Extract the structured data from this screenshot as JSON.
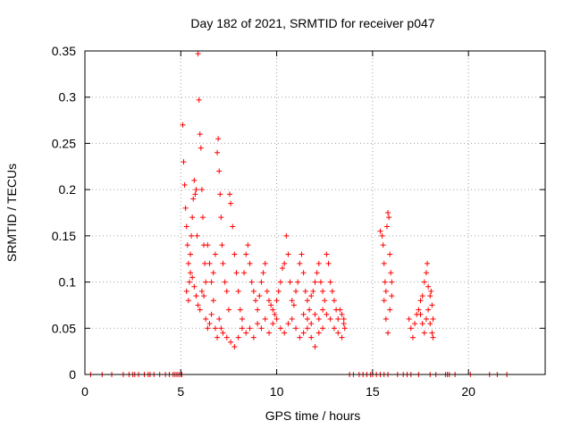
{
  "chart_data": {
    "type": "scatter",
    "title": "Day 182 of 2021, SRMTID for receiver p047",
    "xlabel": "GPS time / hours",
    "ylabel": "SRMTID / TECUs",
    "xlim": [
      0,
      24
    ],
    "ylim": [
      0,
      0.35
    ],
    "x_ticks": [
      0,
      5,
      10,
      15,
      20
    ],
    "x_tick_labels": [
      "0",
      "5",
      "10",
      "15",
      "20"
    ],
    "y_ticks": [
      0,
      0.05,
      0.1,
      0.15,
      0.2,
      0.25,
      0.3,
      0.35
    ],
    "y_tick_labels": [
      "0",
      "0.05",
      "0.1",
      "0.15",
      "0.2",
      "0.25",
      "0.3",
      "0.35"
    ],
    "grid": true,
    "marker": "+",
    "color": "#ff0000",
    "series": [
      {
        "name": "SRMTID",
        "points": [
          [
            0.3,
            0
          ],
          [
            0.9,
            0
          ],
          [
            1.4,
            0
          ],
          [
            2.0,
            0
          ],
          [
            2.3,
            0
          ],
          [
            2.5,
            0
          ],
          [
            2.6,
            0
          ],
          [
            2.8,
            0
          ],
          [
            3.1,
            0
          ],
          [
            3.3,
            0
          ],
          [
            3.4,
            0
          ],
          [
            3.6,
            0
          ],
          [
            3.9,
            0
          ],
          [
            4.2,
            0
          ],
          [
            4.4,
            0
          ],
          [
            4.6,
            0
          ],
          [
            4.7,
            0
          ],
          [
            4.8,
            0
          ],
          [
            4.9,
            0
          ],
          [
            5.0,
            0
          ],
          [
            5.05,
            0
          ],
          [
            13.8,
            0
          ],
          [
            14.0,
            0
          ],
          [
            14.3,
            0
          ],
          [
            14.5,
            0
          ],
          [
            14.7,
            0
          ],
          [
            14.9,
            0
          ],
          [
            15.0,
            0
          ],
          [
            15.2,
            0
          ],
          [
            15.4,
            0
          ],
          [
            15.6,
            0
          ],
          [
            15.8,
            0
          ],
          [
            16.3,
            0
          ],
          [
            16.6,
            0
          ],
          [
            16.8,
            0
          ],
          [
            17.0,
            0
          ],
          [
            17.4,
            0
          ],
          [
            18.0,
            0
          ],
          [
            18.3,
            0
          ],
          [
            18.8,
            0
          ],
          [
            18.9,
            0
          ],
          [
            19.0,
            0
          ],
          [
            19.3,
            0
          ],
          [
            20.1,
            0
          ],
          [
            21.1,
            0
          ],
          [
            21.5,
            0
          ],
          [
            22.0,
            0
          ],
          [
            5.1,
            0.27
          ],
          [
            5.15,
            0.23
          ],
          [
            5.2,
            0.205
          ],
          [
            5.25,
            0.18
          ],
          [
            5.3,
            0.16
          ],
          [
            5.35,
            0.14
          ],
          [
            5.4,
            0.12
          ],
          [
            5.45,
            0.1
          ],
          [
            5.5,
            0.13
          ],
          [
            5.55,
            0.15
          ],
          [
            5.6,
            0.17
          ],
          [
            5.65,
            0.19
          ],
          [
            5.7,
            0.21
          ],
          [
            5.75,
            0.195
          ],
          [
            5.8,
            0.2
          ],
          [
            5.85,
            0.15
          ],
          [
            5.9,
            0.347
          ],
          [
            5.95,
            0.297
          ],
          [
            6.0,
            0.26
          ],
          [
            6.05,
            0.245
          ],
          [
            6.1,
            0.2
          ],
          [
            6.15,
            0.17
          ],
          [
            6.2,
            0.14
          ],
          [
            6.25,
            0.12
          ],
          [
            6.3,
            0.1
          ],
          [
            5.3,
            0.09
          ],
          [
            5.4,
            0.08
          ],
          [
            5.5,
            0.11
          ],
          [
            5.6,
            0.105
          ],
          [
            5.7,
            0.095
          ],
          [
            5.8,
            0.085
          ],
          [
            5.9,
            0.075
          ],
          [
            6.0,
            0.07
          ],
          [
            6.1,
            0.09
          ],
          [
            6.2,
            0.085
          ],
          [
            6.3,
            0.06
          ],
          [
            6.4,
            0.05
          ],
          [
            6.5,
            0.055
          ],
          [
            6.6,
            0.065
          ],
          [
            6.7,
            0.08
          ],
          [
            6.4,
            0.14
          ],
          [
            6.5,
            0.12
          ],
          [
            6.6,
            0.1
          ],
          [
            6.7,
            0.11
          ],
          [
            6.8,
            0.13
          ],
          [
            6.9,
            0.24
          ],
          [
            6.95,
            0.255
          ],
          [
            7.0,
            0.22
          ],
          [
            7.05,
            0.195
          ],
          [
            7.1,
            0.17
          ],
          [
            7.15,
            0.14
          ],
          [
            7.2,
            0.12
          ],
          [
            7.3,
            0.1
          ],
          [
            7.4,
            0.09
          ],
          [
            7.5,
            0.07
          ],
          [
            7.55,
            0.195
          ],
          [
            7.6,
            0.185
          ],
          [
            7.7,
            0.16
          ],
          [
            7.8,
            0.13
          ],
          [
            7.9,
            0.11
          ],
          [
            8.0,
            0.09
          ],
          [
            8.1,
            0.07
          ],
          [
            8.2,
            0.06
          ],
          [
            6.8,
            0.05
          ],
          [
            6.9,
            0.04
          ],
          [
            7.0,
            0.06
          ],
          [
            7.1,
            0.05
          ],
          [
            7.2,
            0.045
          ],
          [
            7.4,
            0.04
          ],
          [
            7.6,
            0.035
          ],
          [
            7.8,
            0.03
          ],
          [
            8.0,
            0.04
          ],
          [
            8.2,
            0.05
          ],
          [
            8.4,
            0.045
          ],
          [
            8.6,
            0.05
          ],
          [
            8.8,
            0.04
          ],
          [
            9.0,
            0.055
          ],
          [
            8.3,
            0.11
          ],
          [
            8.4,
            0.13
          ],
          [
            8.5,
            0.14
          ],
          [
            8.6,
            0.12
          ],
          [
            8.7,
            0.1
          ],
          [
            8.8,
            0.09
          ],
          [
            8.9,
            0.08
          ],
          [
            9.0,
            0.07
          ],
          [
            9.1,
            0.085
          ],
          [
            9.2,
            0.1
          ],
          [
            9.3,
            0.11
          ],
          [
            9.4,
            0.12
          ],
          [
            9.5,
            0.09
          ],
          [
            9.6,
            0.08
          ],
          [
            9.7,
            0.075
          ],
          [
            9.8,
            0.07
          ],
          [
            9.9,
            0.065
          ],
          [
            10.0,
            0.08
          ],
          [
            10.1,
            0.09
          ],
          [
            10.2,
            0.1
          ],
          [
            10.3,
            0.115
          ],
          [
            10.4,
            0.12
          ],
          [
            10.5,
            0.15
          ],
          [
            10.6,
            0.13
          ],
          [
            10.7,
            0.1
          ],
          [
            9.2,
            0.05
          ],
          [
            9.4,
            0.06
          ],
          [
            9.6,
            0.045
          ],
          [
            9.8,
            0.055
          ],
          [
            10.0,
            0.06
          ],
          [
            10.2,
            0.05
          ],
          [
            10.4,
            0.045
          ],
          [
            10.6,
            0.055
          ],
          [
            10.8,
            0.06
          ],
          [
            11.0,
            0.05
          ],
          [
            11.2,
            0.04
          ],
          [
            11.4,
            0.045
          ],
          [
            11.6,
            0.05
          ],
          [
            11.8,
            0.04
          ],
          [
            12.0,
            0.03
          ],
          [
            12.2,
            0.045
          ],
          [
            12.4,
            0.05
          ],
          [
            10.8,
            0.08
          ],
          [
            10.9,
            0.075
          ],
          [
            11.0,
            0.09
          ],
          [
            11.1,
            0.1
          ],
          [
            11.2,
            0.12
          ],
          [
            11.3,
            0.13
          ],
          [
            11.4,
            0.11
          ],
          [
            11.5,
            0.09
          ],
          [
            11.6,
            0.08
          ],
          [
            11.7,
            0.07
          ],
          [
            11.8,
            0.085
          ],
          [
            11.9,
            0.09
          ],
          [
            12.0,
            0.1
          ],
          [
            12.1,
            0.11
          ],
          [
            12.2,
            0.12
          ],
          [
            12.3,
            0.1
          ],
          [
            12.4,
            0.09
          ],
          [
            12.5,
            0.08
          ],
          [
            12.6,
            0.13
          ],
          [
            12.7,
            0.12
          ],
          [
            12.8,
            0.1
          ],
          [
            12.9,
            0.09
          ],
          [
            13.0,
            0.08
          ],
          [
            13.1,
            0.07
          ],
          [
            13.2,
            0.06
          ],
          [
            13.3,
            0.07
          ],
          [
            13.4,
            0.065
          ],
          [
            13.5,
            0.06
          ],
          [
            13.55,
            0.05
          ],
          [
            11.4,
            0.065
          ],
          [
            11.6,
            0.06
          ],
          [
            11.8,
            0.055
          ],
          [
            12.0,
            0.065
          ],
          [
            12.2,
            0.06
          ],
          [
            12.4,
            0.07
          ],
          [
            12.6,
            0.065
          ],
          [
            12.8,
            0.06
          ],
          [
            13.0,
            0.05
          ],
          [
            13.2,
            0.045
          ],
          [
            13.4,
            0.04
          ],
          [
            13.5,
            0.055
          ],
          [
            15.4,
            0.155
          ],
          [
            15.5,
            0.15
          ],
          [
            15.55,
            0.14
          ],
          [
            15.6,
            0.12
          ],
          [
            15.65,
            0.1
          ],
          [
            15.7,
            0.09
          ],
          [
            15.75,
            0.16
          ],
          [
            15.8,
            0.175
          ],
          [
            15.85,
            0.17
          ],
          [
            15.9,
            0.13
          ],
          [
            15.95,
            0.11
          ],
          [
            16.0,
            0.1
          ],
          [
            15.6,
            0.08
          ],
          [
            15.7,
            0.06
          ],
          [
            15.8,
            0.045
          ],
          [
            15.9,
            0.07
          ],
          [
            16.0,
            0.085
          ],
          [
            16.9,
            0.06
          ],
          [
            17.0,
            0.05
          ],
          [
            17.1,
            0.04
          ],
          [
            17.2,
            0.055
          ],
          [
            17.3,
            0.065
          ],
          [
            17.4,
            0.07
          ],
          [
            17.5,
            0.08
          ],
          [
            17.6,
            0.085
          ],
          [
            17.7,
            0.1
          ],
          [
            17.8,
            0.11
          ],
          [
            17.85,
            0.12
          ],
          [
            17.9,
            0.095
          ],
          [
            18.0,
            0.085
          ],
          [
            18.05,
            0.09
          ],
          [
            18.1,
            0.075
          ],
          [
            18.15,
            0.06
          ],
          [
            17.5,
            0.065
          ],
          [
            17.6,
            0.055
          ],
          [
            17.7,
            0.045
          ],
          [
            17.8,
            0.06
          ],
          [
            17.9,
            0.07
          ],
          [
            18.0,
            0.055
          ],
          [
            18.1,
            0.045
          ],
          [
            18.15,
            0.04
          ]
        ]
      }
    ]
  }
}
